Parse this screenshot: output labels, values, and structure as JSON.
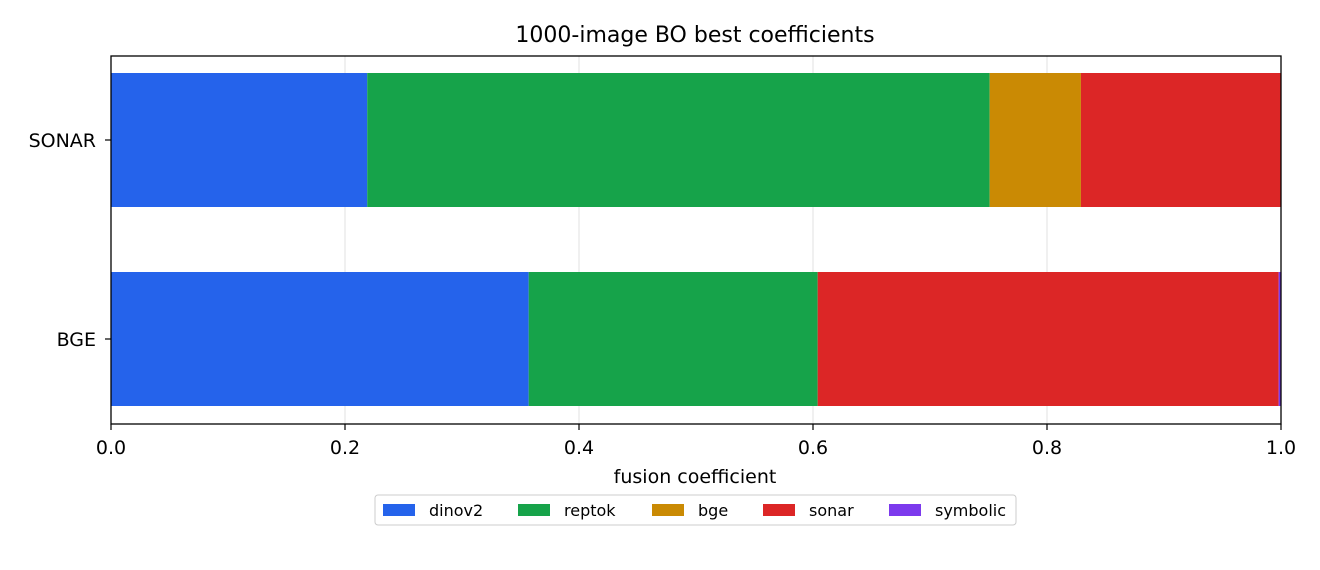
{
  "chart_data": {
    "type": "bar",
    "orientation": "horizontal",
    "stacked": true,
    "title": "1000-image BO best coefficients",
    "xlabel": "fusion coefficient",
    "ylabel": "",
    "xlim": [
      0,
      1
    ],
    "xticks": [
      0.0,
      0.2,
      0.4,
      0.6,
      0.8,
      1.0
    ],
    "xtick_labels": [
      "0.0",
      "0.2",
      "0.4",
      "0.6",
      "0.8",
      "1.0"
    ],
    "grid": "x",
    "legend_placement": "bottom-center",
    "categories": [
      "SONAR",
      "BGE"
    ],
    "series": [
      {
        "name": "dinov2",
        "color": "#2563eb",
        "values": [
          0.219,
          0.357
        ]
      },
      {
        "name": "reptok",
        "color": "#16a34a",
        "values": [
          0.532,
          0.247
        ]
      },
      {
        "name": "bge",
        "color": "#ca8a04",
        "values": [
          0.078,
          0.0
        ]
      },
      {
        "name": "sonar",
        "color": "#dc2626",
        "values": [
          0.171,
          0.394
        ]
      },
      {
        "name": "symbolic",
        "color": "#7c3aed",
        "values": [
          0.0,
          0.002
        ]
      }
    ]
  }
}
